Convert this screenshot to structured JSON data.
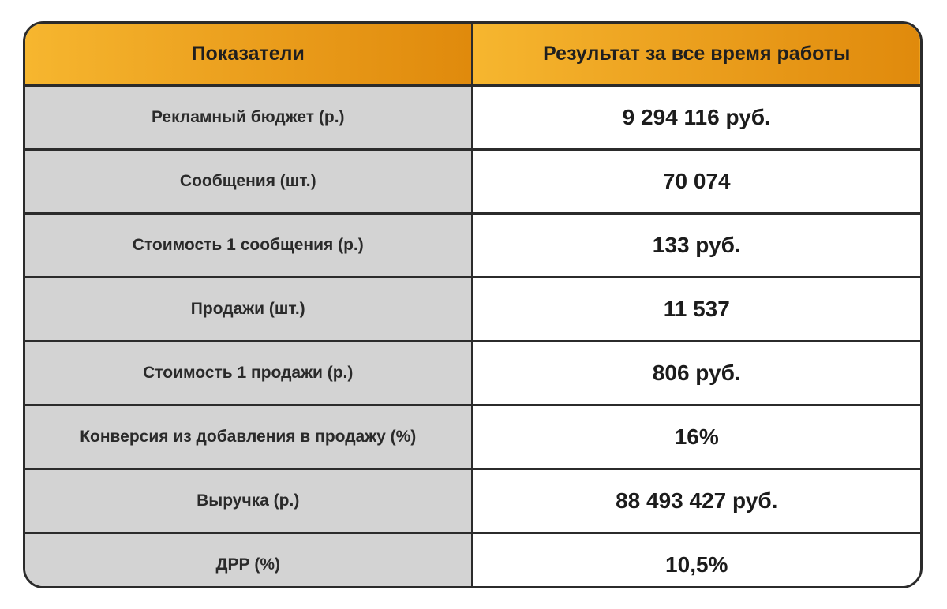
{
  "header": {
    "col1": "Показатели",
    "col2": "Результат за все время работы"
  },
  "rows": [
    {
      "label": "Рекламный бюджет (р.)",
      "value": "9 294 116 руб."
    },
    {
      "label": "Сообщения (шт.)",
      "value": "70 074"
    },
    {
      "label": "Стоимость 1 сообщения (р.)",
      "value": "133 руб."
    },
    {
      "label": "Продажи (шт.)",
      "value": "11 537"
    },
    {
      "label": "Стоимость 1 продажи (р.)",
      "value": "806 руб."
    },
    {
      "label": "Конверсия из добавления в продажу (%)",
      "value": "16%"
    },
    {
      "label": "Выручка (р.)",
      "value": "88 493 427 руб."
    },
    {
      "label": "ДРР (%)",
      "value": "10,5%"
    }
  ],
  "colors": {
    "header_gradient_start": "#f6b62f",
    "header_gradient_end": "#e08a0c",
    "label_cell_bg": "#d3d3d3",
    "border": "#2b2b2b"
  }
}
